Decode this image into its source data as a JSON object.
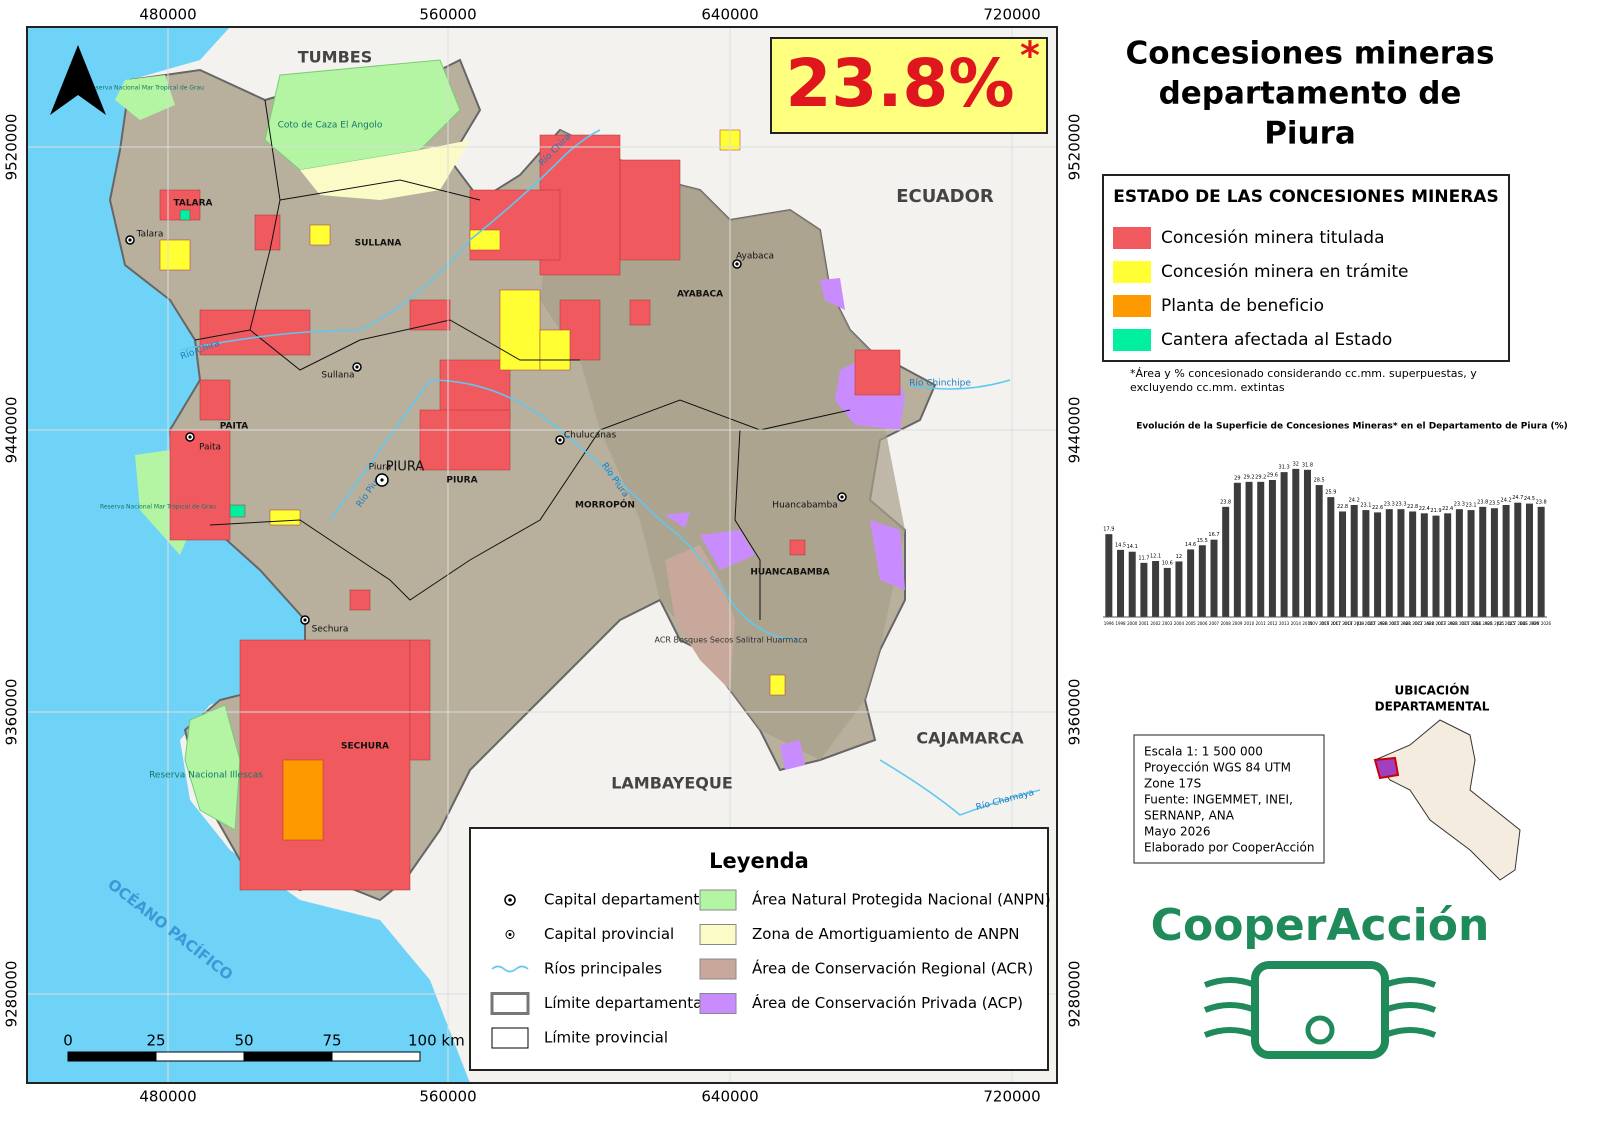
{
  "header": {
    "title": "Concesiones mineras departamento de Piura"
  },
  "highlight": {
    "value": "23.8%",
    "mark": "*"
  },
  "status_legend": {
    "title": "ESTADO DE LAS CONCESIONES MINERAS",
    "items": [
      {
        "label": "Concesión minera titulada",
        "color": "#f05a5f"
      },
      {
        "label": "Concesión minera en trámite",
        "color": "#ffff33"
      },
      {
        "label": "Planta de beneficio",
        "color": "#ff9900"
      },
      {
        "label": "Cantera afectada al Estado",
        "color": "#00f0a0"
      }
    ],
    "note": "*Área y % concesionado considerando cc.mm. superpuestas, y excluyendo cc.mm. extintas"
  },
  "chart_data": {
    "type": "bar",
    "title": "Evolución de la Superficie de Concesiones Mineras* en el Departamento de Piura (%)",
    "categories": [
      "1996",
      "1998",
      "2000",
      "2001",
      "2002",
      "2003",
      "2004",
      "2005",
      "2006",
      "2007",
      "2008",
      "2009",
      "2010",
      "2011",
      "2012",
      "2013",
      "2014",
      "2015",
      "NOV 2016",
      "OCT 2017",
      "OCT 2018",
      "OCT 2019",
      "JUL 2020",
      "OCT 2020",
      "ABR 2021",
      "OCT 2021",
      "ABR 2022",
      "OCT 2022",
      "ABR 2023",
      "OCT 2023",
      "ABR 2024",
      "OCT 2024",
      "ENE 2025",
      "ABR 2025",
      "JUL 2025",
      "OCT 2025",
      "ENE 2026",
      "MAY 2026"
    ],
    "values": [
      17.9,
      14.5,
      14.1,
      11.7,
      12.1,
      10.6,
      12.0,
      14.6,
      15.5,
      16.7,
      23.8,
      29.0,
      29.2,
      29.2,
      29.6,
      31.3,
      32.0,
      31.8,
      28.5,
      25.9,
      22.8,
      24.2,
      23.1,
      22.6,
      23.3,
      23.3,
      22.8,
      22.4,
      21.9,
      22.4,
      23.3,
      23.1,
      23.8,
      23.5,
      24.2,
      24.7,
      24.5,
      23.8
    ],
    "color": "#3c3c3c",
    "ylim": [
      0,
      35
    ]
  },
  "map": {
    "x_coords": [
      480000,
      560000,
      640000,
      720000
    ],
    "y_coords": [
      9520000,
      9440000,
      9360000,
      9280000
    ],
    "places": [
      "TUMBES",
      "ECUADOR",
      "CAJAMARCA",
      "LAMBAYEQUE",
      "OCÉANO PACÍFICO",
      "PIURA",
      "Piura",
      "Sullana",
      "Talara",
      "Paita",
      "Sechura",
      "Chulucanas",
      "Ayabaca",
      "Huancabamba",
      "TALARA",
      "SULLANA",
      "PAITA",
      "PIURA",
      "MORROPÓN",
      "AYABACA",
      "HUANCABAMBA",
      "SECHURA",
      "Coto de Caza El Angolo",
      "Reserva Nacional Illescas",
      "Reserva Nacional Mar Tropical de Grau",
      "Reserva Nacional Mar Tropical de Grau",
      "ACR Bosques Secos Salitral Huarmaca"
    ],
    "rivers": [
      "Río Chira",
      "Río Chira",
      "Río Piura",
      "Río Piura",
      "Río Chinchipe",
      "Río Chamaya"
    ]
  },
  "legend": {
    "title": "Leyenda",
    "items": [
      "Capital departamental",
      "Capital provincial",
      "Ríos principales",
      "Límite departamental",
      "Límite provincial"
    ],
    "areas": [
      {
        "label": "Área Natural Protegida Nacional (ANPN)",
        "color": "#b3f5a3"
      },
      {
        "label": "Zona de Amortiguamiento de ANPN",
        "color": "#fbfbc8"
      },
      {
        "label": "Área de Conservación Regional (ACR)",
        "color": "#c8a89a"
      },
      {
        "label": "Área de Conservación Privada (ACP)",
        "color": "#c98cff"
      }
    ]
  },
  "scale": {
    "labels": [
      "0",
      "25",
      "50",
      "75",
      "100 km"
    ]
  },
  "info": {
    "lines": [
      "Escala 1: 1 500 000",
      "Proyección WGS 84 UTM",
      "Zone 17S",
      "Fuente: INGEMMET, INEI,",
      "SERNANP, ANA",
      "Mayo 2026",
      "Elaborado por CooperAcción"
    ]
  },
  "location": {
    "title": "UBICACIÓN DEPARTAMENTAL"
  },
  "logo": "CooperAcción"
}
